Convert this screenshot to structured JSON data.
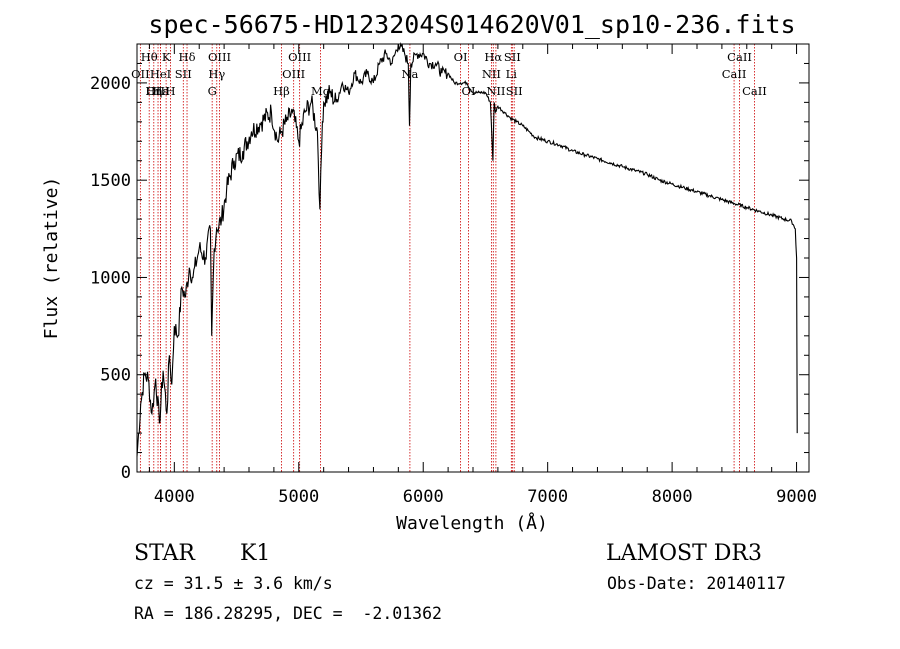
{
  "chart_data": {
    "type": "line",
    "title": "spec-56675-HD123204S014620V01_sp10-236.fits",
    "xlabel": "Wavelength (Å)",
    "ylabel": "Flux (relative)",
    "xlim": [
      3700,
      9100
    ],
    "ylim": [
      0,
      2200
    ],
    "xticks": [
      4000,
      5000,
      6000,
      7000,
      8000,
      9000
    ],
    "yticks": [
      0,
      500,
      1000,
      1500,
      2000
    ],
    "grid": false,
    "series": [
      {
        "name": "spectrum",
        "x": [
          3700,
          3730,
          3760,
          3790,
          3820,
          3850,
          3880,
          3910,
          3940,
          3960,
          3980,
          4000,
          4030,
          4060,
          4090,
          4120,
          4150,
          4200,
          4250,
          4290,
          4300,
          4320,
          4340,
          4380,
          4420,
          4480,
          4550,
          4620,
          4700,
          4780,
          4830,
          4860,
          4900,
          4950,
          5000,
          5050,
          5100,
          5150,
          5170,
          5190,
          5200,
          5250,
          5300,
          5350,
          5400,
          5450,
          5500,
          5550,
          5600,
          5650,
          5700,
          5750,
          5800,
          5850,
          5880,
          5890,
          5900,
          5950,
          6000,
          6050,
          6100,
          6150,
          6200,
          6250,
          6300,
          6350,
          6400,
          6450,
          6500,
          6540,
          6560,
          6570,
          6580,
          6600,
          6650,
          6700,
          6750,
          6800,
          6850,
          6900,
          7000,
          7100,
          7200,
          7300,
          7400,
          7500,
          7600,
          7700,
          7800,
          7900,
          8000,
          8100,
          8200,
          8300,
          8400,
          8500,
          8600,
          8700,
          8800,
          8900,
          8960,
          8990,
          9000,
          9005
        ],
        "y": [
          80,
          350,
          500,
          480,
          300,
          480,
          250,
          520,
          300,
          600,
          450,
          750,
          700,
          950,
          900,
          1050,
          1000,
          1150,
          1100,
          1250,
          700,
          1150,
          1250,
          1300,
          1450,
          1600,
          1650,
          1750,
          1800,
          1850,
          1700,
          1750,
          1800,
          1850,
          1700,
          1850,
          1900,
          1750,
          1350,
          1800,
          1900,
          1950,
          1900,
          2000,
          1950,
          2050,
          2000,
          2050,
          2000,
          2100,
          2150,
          2100,
          2200,
          2150,
          2100,
          1780,
          2100,
          2150,
          2150,
          2100,
          2100,
          2050,
          2050,
          2000,
          2000,
          2000,
          1950,
          1950,
          1950,
          1900,
          1600,
          1900,
          1850,
          1880,
          1850,
          1820,
          1800,
          1780,
          1750,
          1720,
          1700,
          1680,
          1650,
          1630,
          1610,
          1590,
          1570,
          1550,
          1530,
          1500,
          1480,
          1460,
          1440,
          1420,
          1400,
          1380,
          1360,
          1340,
          1320,
          1300,
          1290,
          1250,
          1100,
          200
        ]
      }
    ],
    "emission_lines": [
      {
        "name": "Hθ",
        "wavelength": 3798,
        "row": 0
      },
      {
        "name": "OII",
        "wavelength": 3727,
        "row": 1
      },
      {
        "name": "OIII",
        "wavelength": 3869,
        "row": 2
      },
      {
        "name": "Hε",
        "wavelength": 3889,
        "row": 2
      },
      {
        "name": "K",
        "wavelength": 3934,
        "row": 0
      },
      {
        "name": "HeI",
        "wavelength": 3889,
        "row": 1
      },
      {
        "name": "Hη",
        "wavelength": 3835,
        "row": 2
      },
      {
        "name": "H",
        "wavelength": 3969,
        "row": 2
      },
      {
        "name": "Hδ",
        "wavelength": 4102,
        "row": 0
      },
      {
        "name": "SII",
        "wavelength": 4072,
        "row": 1
      },
      {
        "name": "OIII",
        "wavelength": 4363,
        "row": 0
      },
      {
        "name": "Hγ",
        "wavelength": 4341,
        "row": 1
      },
      {
        "name": "G",
        "wavelength": 4304,
        "row": 2
      },
      {
        "name": "OIII",
        "wavelength": 5007,
        "row": 0
      },
      {
        "name": "OIII",
        "wavelength": 4959,
        "row": 1
      },
      {
        "name": "Hβ",
        "wavelength": 4861,
        "row": 2
      },
      {
        "name": "Mg",
        "wavelength": 5175,
        "row": 2
      },
      {
        "name": "Na",
        "wavelength": 5893,
        "row": 1
      },
      {
        "name": "OI",
        "wavelength": 6300,
        "row": 0
      },
      {
        "name": "OI",
        "wavelength": 6364,
        "row": 2
      },
      {
        "name": "Hα",
        "wavelength": 6563,
        "row": 0
      },
      {
        "name": "SII",
        "wavelength": 6716,
        "row": 0
      },
      {
        "name": "NII",
        "wavelength": 6548,
        "row": 1
      },
      {
        "name": "Li",
        "wavelength": 6708,
        "row": 1
      },
      {
        "name": "NII",
        "wavelength": 6584,
        "row": 2
      },
      {
        "name": "SII",
        "wavelength": 6731,
        "row": 2
      },
      {
        "name": "CaII",
        "wavelength": 8542,
        "row": 0
      },
      {
        "name": "CaII",
        "wavelength": 8498,
        "row": 1
      },
      {
        "name": "CaII",
        "wavelength": 8662,
        "row": 2
      }
    ]
  },
  "info": {
    "object_class": "STAR",
    "subclass": "K1",
    "cz": "cz = 31.5 ± 3.6 km/s",
    "coords": "RA = 186.28295, DEC =  -2.01362",
    "survey": "LAMOST DR3",
    "obs_date": "Obs-Date: 20140117"
  },
  "colors": {
    "spectrum": "#000000",
    "line_marker": "#cc0000",
    "axis": "#000000"
  }
}
